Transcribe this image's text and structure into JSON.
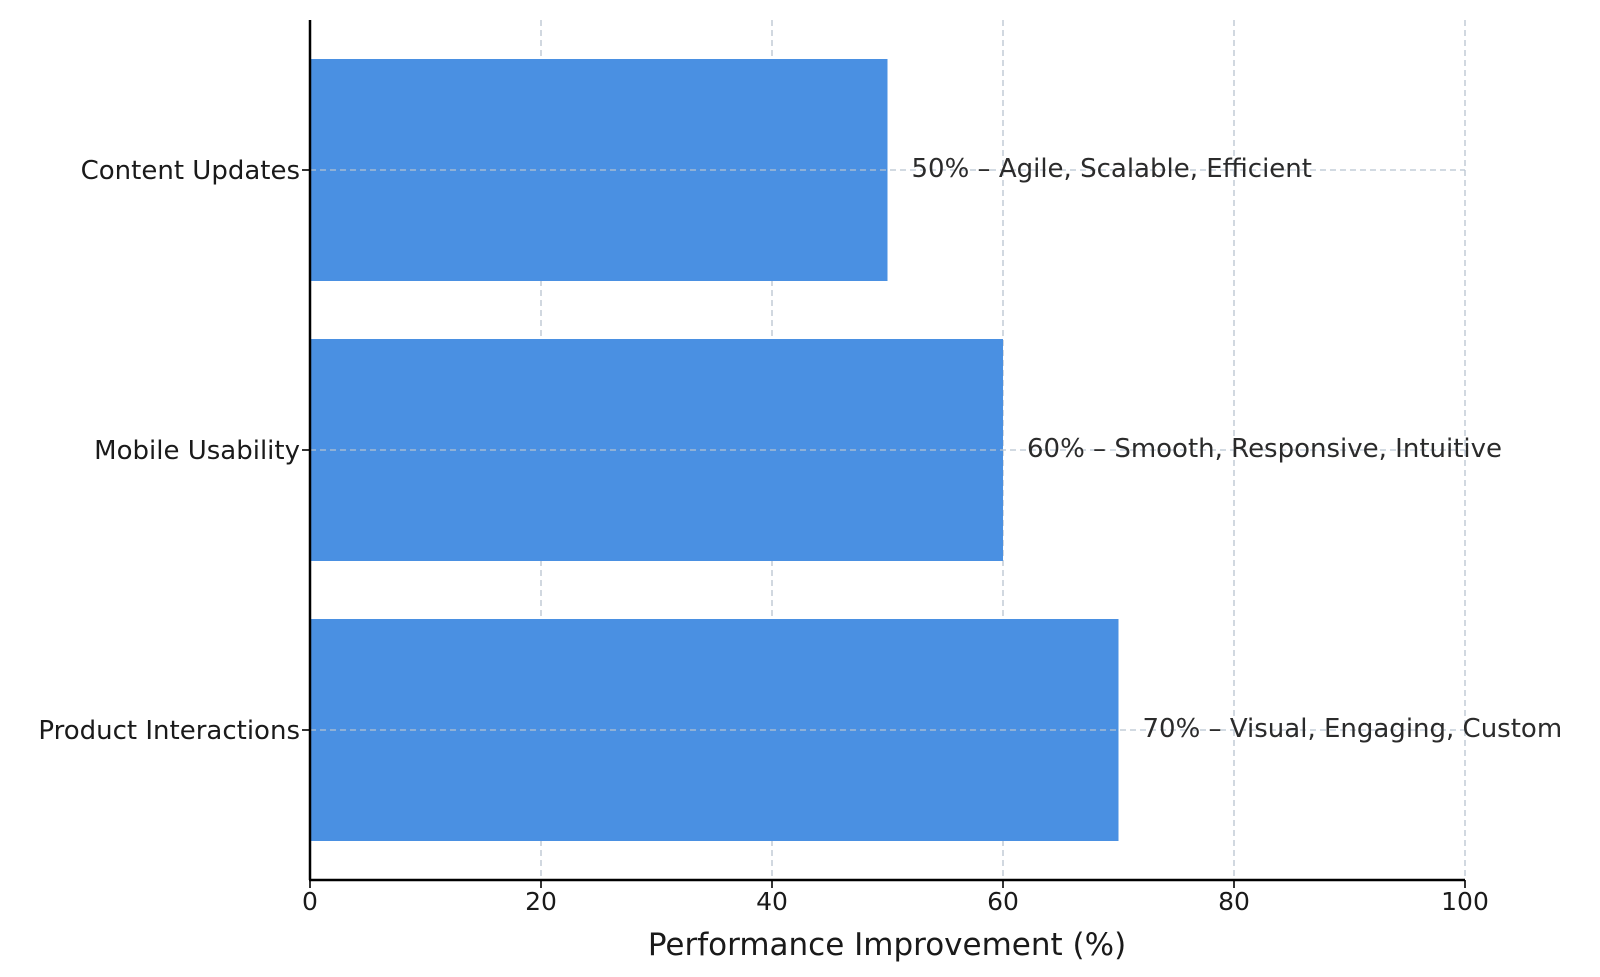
{
  "chart_data": {
    "type": "bar",
    "orientation": "horizontal",
    "categories": [
      "Content Updates",
      "Mobile Usability",
      "Product Interactions"
    ],
    "values": [
      50,
      60,
      70
    ],
    "bar_labels": [
      "50% – Agile, Scalable, Efficient",
      "60% – Smooth, Responsive, Intuitive",
      "70% – Visual, Engaging, Custom"
    ],
    "title": "",
    "xlabel": "Performance Improvement (%)",
    "ylabel": "",
    "xlim": [
      0,
      100
    ],
    "xticks": [
      "0",
      "20",
      "40",
      "60",
      "80",
      "100"
    ],
    "grid": true,
    "colors": {
      "bar": "#4a90e2",
      "grid": "#b8c4d0",
      "axis": "#000000"
    }
  }
}
